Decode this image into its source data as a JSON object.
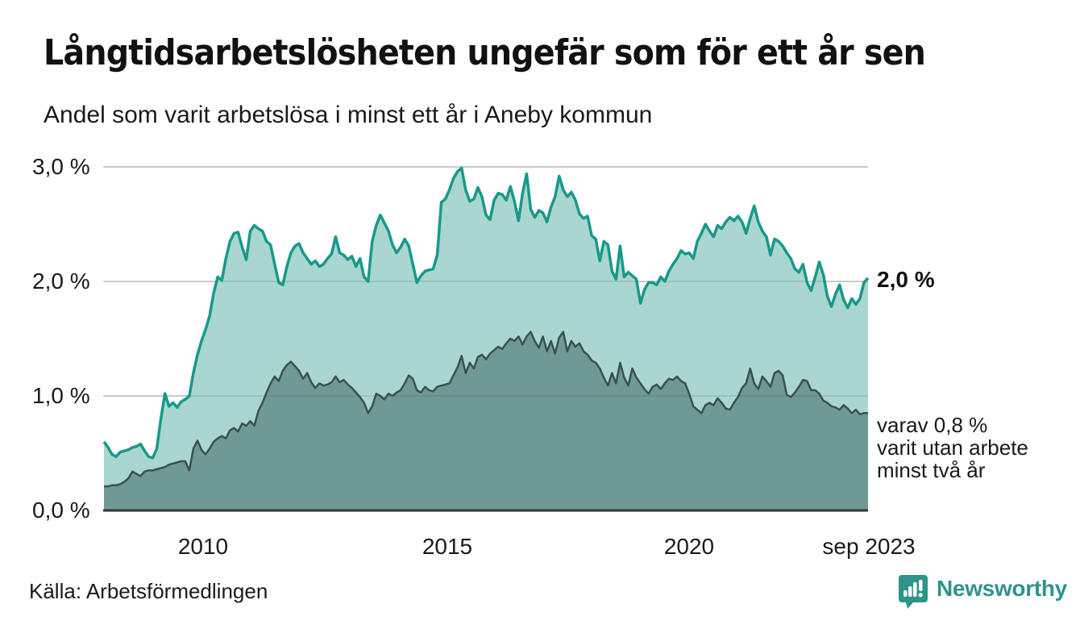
{
  "title": "Långtidsarbetslösheten ungefär som för ett år sen",
  "subtitle": "Andel som varit arbetslösa i minst ett år i Aneby kommun",
  "source": "Källa: Arbetsförmedlingen",
  "branding": {
    "name": "Newsworthy",
    "logo_icon": "speech-bubble-bar-chart-icon",
    "color": "#2e948b"
  },
  "y_axis": {
    "tick_labels": {
      "t3": "3,0 %",
      "t2": "2,0 %",
      "t1": "1,0 %",
      "t0": "0,0 %"
    }
  },
  "x_axis": {
    "tick_labels": {
      "x2010": "2010",
      "x2015": "2015",
      "x2020": "2020",
      "xend": "sep 2023"
    }
  },
  "annotations": {
    "end_value_label": "2,0 %",
    "sub_series_line1": "varav 0,8 %",
    "sub_series_line2": "varit utan arbete",
    "sub_series_line3": "minst två år"
  },
  "chart_data": {
    "type": "area",
    "title": "Långtidsarbetslösheten ungefär som för ett år sen",
    "subtitle": "Andel som varit arbetslösa i minst ett år i Aneby kommun",
    "unit": "%",
    "frequency": "monthly",
    "x_start": "2008-01",
    "x_end": "2023-09",
    "ylim": [
      0,
      3
    ],
    "yticks": [
      0,
      1,
      2,
      3
    ],
    "grid": true,
    "legend_position": "inline-right-annotations",
    "colors": {
      "line_1yr": "#17998b",
      "fill_1yr": "#aad6d0",
      "line_2yr": "#3a514d",
      "fill_2yr": "#6f9a94",
      "grid": "#e0e0e0",
      "grid_overlay": "rgba(40,60,58,0.12)",
      "axis": "#333333"
    },
    "series": [
      {
        "name": "Andel arbetslösa minst ett år",
        "end_value": 2.0,
        "values": [
          0.6,
          0.55,
          0.49,
          0.47,
          0.51,
          0.52,
          0.53,
          0.55,
          0.56,
          0.58,
          0.52,
          0.47,
          0.46,
          0.54,
          0.8,
          1.02,
          0.91,
          0.94,
          0.9,
          0.95,
          0.97,
          1.0,
          1.2,
          1.36,
          1.48,
          1.58,
          1.7,
          1.9,
          2.04,
          2.01,
          2.2,
          2.35,
          2.42,
          2.43,
          2.3,
          2.19,
          2.44,
          2.49,
          2.46,
          2.44,
          2.35,
          2.32,
          2.15,
          1.99,
          1.97,
          2.13,
          2.25,
          2.31,
          2.33,
          2.25,
          2.2,
          2.15,
          2.18,
          2.13,
          2.15,
          2.2,
          2.24,
          2.39,
          2.25,
          2.23,
          2.19,
          2.22,
          2.13,
          2.2,
          2.04,
          2.0,
          2.35,
          2.49,
          2.58,
          2.51,
          2.44,
          2.32,
          2.25,
          2.3,
          2.37,
          2.31,
          2.15,
          1.99,
          2.05,
          2.09,
          2.1,
          2.11,
          2.23,
          2.69,
          2.72,
          2.8,
          2.9,
          2.96,
          2.99,
          2.8,
          2.7,
          2.72,
          2.82,
          2.74,
          2.58,
          2.54,
          2.71,
          2.77,
          2.76,
          2.71,
          2.83,
          2.7,
          2.53,
          2.77,
          2.94,
          2.63,
          2.56,
          2.62,
          2.6,
          2.52,
          2.65,
          2.74,
          2.92,
          2.8,
          2.74,
          2.78,
          2.71,
          2.59,
          2.55,
          2.57,
          2.4,
          2.37,
          2.18,
          2.35,
          2.32,
          2.09,
          2.02,
          2.31,
          2.04,
          2.08,
          2.05,
          2.02,
          1.81,
          1.93,
          1.99,
          1.99,
          1.97,
          2.04,
          2.0,
          2.09,
          2.15,
          2.2,
          2.27,
          2.24,
          2.25,
          2.2,
          2.35,
          2.42,
          2.5,
          2.44,
          2.39,
          2.49,
          2.46,
          2.52,
          2.56,
          2.53,
          2.57,
          2.52,
          2.42,
          2.55,
          2.66,
          2.52,
          2.44,
          2.39,
          2.23,
          2.37,
          2.35,
          2.31,
          2.25,
          2.2,
          2.11,
          2.08,
          2.15,
          1.99,
          1.92,
          2.04,
          2.17,
          2.06,
          1.87,
          1.78,
          1.89,
          1.97,
          1.84,
          1.77,
          1.85,
          1.8,
          1.85,
          1.99,
          2.03
        ]
      },
      {
        "name": "varav utan arbete minst två år",
        "end_value": 0.8,
        "values": [
          0.21,
          0.21,
          0.22,
          0.22,
          0.23,
          0.25,
          0.28,
          0.34,
          0.32,
          0.3,
          0.34,
          0.35,
          0.35,
          0.36,
          0.37,
          0.38,
          0.4,
          0.41,
          0.42,
          0.43,
          0.43,
          0.35,
          0.54,
          0.61,
          0.53,
          0.49,
          0.54,
          0.6,
          0.63,
          0.65,
          0.63,
          0.7,
          0.72,
          0.69,
          0.76,
          0.74,
          0.78,
          0.74,
          0.87,
          0.94,
          1.03,
          1.11,
          1.17,
          1.13,
          1.22,
          1.27,
          1.3,
          1.26,
          1.22,
          1.15,
          1.2,
          1.12,
          1.07,
          1.11,
          1.09,
          1.1,
          1.12,
          1.17,
          1.12,
          1.14,
          1.1,
          1.07,
          1.03,
          0.99,
          0.94,
          0.85,
          0.91,
          1.02,
          1.0,
          0.97,
          1.02,
          1.0,
          1.03,
          1.05,
          1.11,
          1.18,
          1.15,
          1.05,
          1.03,
          1.08,
          1.05,
          1.04,
          1.08,
          1.09,
          1.1,
          1.11,
          1.18,
          1.25,
          1.35,
          1.2,
          1.29,
          1.24,
          1.34,
          1.36,
          1.32,
          1.37,
          1.4,
          1.43,
          1.41,
          1.46,
          1.5,
          1.48,
          1.52,
          1.45,
          1.52,
          1.56,
          1.48,
          1.42,
          1.52,
          1.39,
          1.48,
          1.37,
          1.51,
          1.56,
          1.39,
          1.48,
          1.43,
          1.46,
          1.39,
          1.36,
          1.31,
          1.29,
          1.24,
          1.16,
          1.09,
          1.2,
          1.11,
          1.29,
          1.16,
          1.09,
          1.24,
          1.16,
          1.11,
          1.06,
          1.02,
          1.08,
          1.1,
          1.06,
          1.11,
          1.15,
          1.14,
          1.17,
          1.13,
          1.11,
          1.02,
          0.91,
          0.88,
          0.85,
          0.92,
          0.94,
          0.92,
          0.98,
          0.94,
          0.89,
          0.88,
          0.94,
          0.99,
          1.07,
          1.11,
          1.24,
          1.11,
          1.06,
          1.17,
          1.13,
          1.08,
          1.2,
          1.22,
          1.18,
          1.01,
          0.99,
          1.03,
          1.08,
          1.14,
          1.13,
          1.05,
          1.05,
          1.02,
          0.96,
          0.94,
          0.91,
          0.9,
          0.88,
          0.92,
          0.89,
          0.85,
          0.88,
          0.84,
          0.85,
          0.85
        ]
      }
    ]
  }
}
